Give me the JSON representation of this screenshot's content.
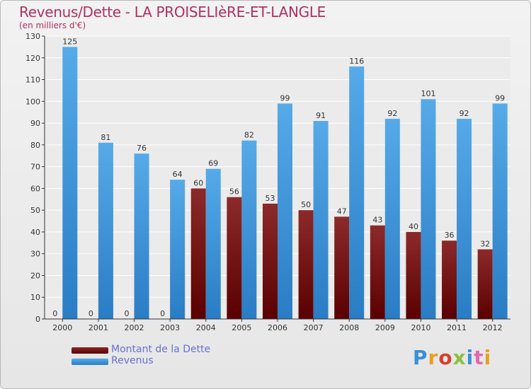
{
  "chart_data": {
    "type": "bar",
    "title": "Revenus/Dette - LA PROISELIèRE-ET-LANGLE",
    "subtitle": "(en milliers d'€)",
    "categories": [
      "2000",
      "2001",
      "2002",
      "2003",
      "2004",
      "2005",
      "2006",
      "2007",
      "2008",
      "2009",
      "2010",
      "2011",
      "2012"
    ],
    "series": [
      {
        "name": "Montant de la Dette",
        "color": "#7a1616",
        "values": [
          0,
          0,
          0,
          0,
          60,
          56,
          53,
          50,
          47,
          43,
          40,
          36,
          32
        ]
      },
      {
        "name": "Revenus",
        "color": "#4a9ee0",
        "values": [
          125,
          81,
          76,
          64,
          69,
          82,
          99,
          91,
          116,
          92,
          101,
          92,
          99
        ]
      }
    ],
    "ylim": [
      0,
      130
    ],
    "yticks": [
      0,
      10,
      20,
      30,
      40,
      50,
      60,
      70,
      80,
      90,
      100,
      110,
      120,
      130
    ],
    "grid": true,
    "legend_position": "bottom-left"
  },
  "logo": {
    "text": "Proxiti"
  }
}
